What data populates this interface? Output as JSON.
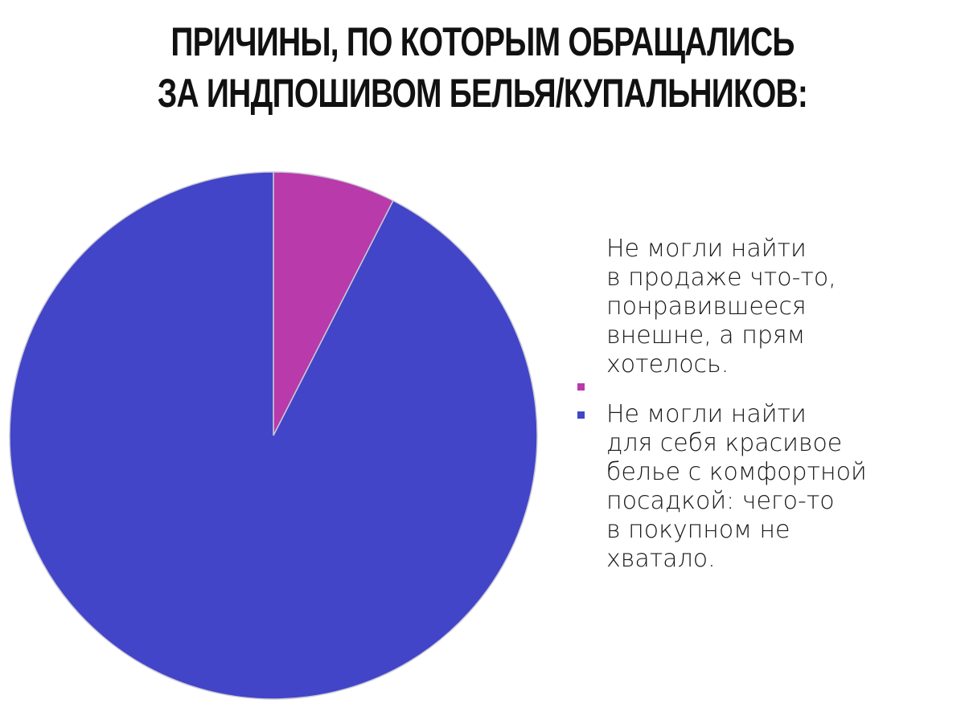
{
  "title": {
    "line1": "ПРИЧИНЫ, ПО КОТОРЫМ ОБРАЩАЛИСЬ",
    "line2": "ЗА ИНДПОШИВОМ БЕЛЬЯ/КУПАЛЬНИКОВ:"
  },
  "chart_data": {
    "type": "pie",
    "title": "ПРИЧИНЫ, ПО КОТОРЫМ ОБРАЩАЛИСЬ ЗА ИНДПОШИВОМ БЕЛЬЯ/КУПАЛЬНИКОВ:",
    "slices": [
      {
        "label": "Не могли найти\nв продаже что-то,\nпонравившееся\nвнешне, а прям\nхотелось.",
        "value": 7.5,
        "color": "#b93aaa"
      },
      {
        "label": "Не могли найти\nдля себя красивое\nбелье с комфортной\nпосадкой: чего-то\nв покупном не\nхватало.",
        "value": 92.5,
        "color": "#4245c8"
      }
    ],
    "start_angle": "top",
    "direction": "clockwise",
    "legend_position": "right"
  }
}
